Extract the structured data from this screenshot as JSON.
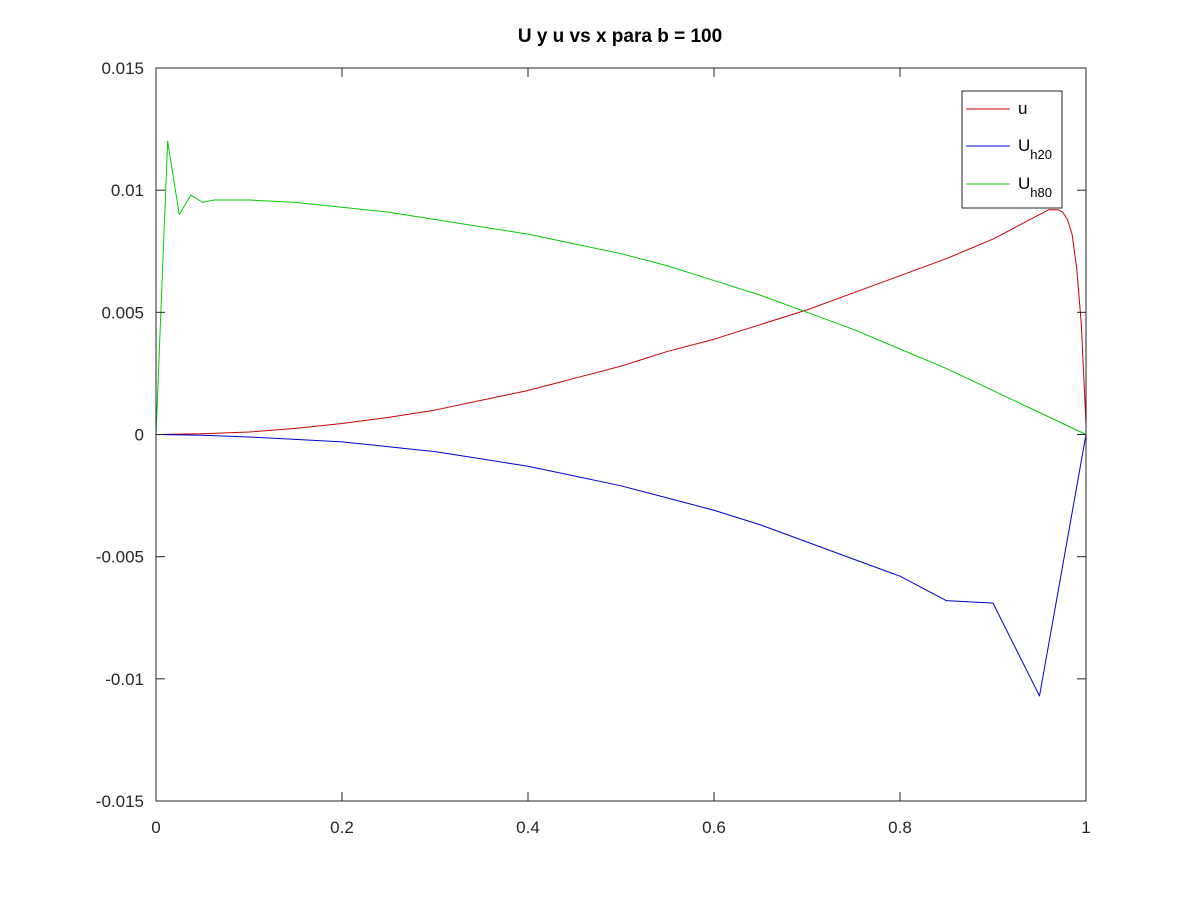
{
  "chart_data": {
    "type": "line",
    "title": "U y u vs x para b = 100",
    "xlabel": "",
    "ylabel": "",
    "xlim": [
      0,
      1
    ],
    "ylim": [
      -0.015,
      0.015
    ],
    "x_ticks": [
      0,
      0.2,
      0.4,
      0.6,
      0.8,
      1
    ],
    "x_tick_labels": [
      "0",
      "0.2",
      "0.4",
      "0.6",
      "0.8",
      "1"
    ],
    "y_ticks": [
      -0.015,
      -0.01,
      -0.005,
      0,
      0.005,
      0.01,
      0.015
    ],
    "y_tick_labels": [
      "-0.015",
      "-0.01",
      "-0.005",
      "0",
      "0.005",
      "0.01",
      "0.015"
    ],
    "grid": false,
    "legend_position": "top-right",
    "series": [
      {
        "name": "u",
        "label_main": "u",
        "label_sub": "",
        "color": "#cc0000",
        "x": [
          0,
          0.05,
          0.1,
          0.15,
          0.2,
          0.25,
          0.3,
          0.35,
          0.4,
          0.45,
          0.5,
          0.55,
          0.6,
          0.65,
          0.7,
          0.75,
          0.8,
          0.85,
          0.9,
          0.92,
          0.94,
          0.95,
          0.96,
          0.97,
          0.975,
          0.98,
          0.985,
          0.99,
          0.995,
          1
        ],
        "y": [
          0,
          3e-05,
          0.0001,
          0.00025,
          0.00045,
          0.0007,
          0.001,
          0.0014,
          0.0018,
          0.0023,
          0.0028,
          0.0034,
          0.0039,
          0.0045,
          0.0051,
          0.0058,
          0.0065,
          0.0072,
          0.008,
          0.0084,
          0.0088,
          0.009,
          0.0092,
          0.0092,
          0.0091,
          0.0088,
          0.0082,
          0.0068,
          0.0045,
          0.0004
        ]
      },
      {
        "name": "U_h20",
        "label_main": "U",
        "label_sub": "h20",
        "color": "#0000cc",
        "x": [
          0,
          0.05,
          0.1,
          0.15,
          0.2,
          0.25,
          0.3,
          0.35,
          0.4,
          0.45,
          0.5,
          0.55,
          0.6,
          0.65,
          0.7,
          0.75,
          0.8,
          0.85,
          0.9,
          0.95,
          1
        ],
        "y": [
          0,
          -3e-05,
          -0.0001,
          -0.0002,
          -0.0003,
          -0.0005,
          -0.0007,
          -0.001,
          -0.0013,
          -0.0017,
          -0.0021,
          -0.0026,
          -0.0031,
          -0.0037,
          -0.0044,
          -0.0051,
          -0.0058,
          -0.0068,
          -0.0069,
          -0.0107,
          0
        ]
      },
      {
        "name": "U_h80",
        "label_main": "U",
        "label_sub": "h80",
        "color": "#00cc00",
        "x": [
          0,
          0.0125,
          0.025,
          0.0375,
          0.05,
          0.0625,
          0.1,
          0.15,
          0.2,
          0.25,
          0.3,
          0.35,
          0.4,
          0.45,
          0.5,
          0.55,
          0.6,
          0.65,
          0.7,
          0.75,
          0.8,
          0.85,
          0.9,
          0.95,
          1
        ],
        "y": [
          0,
          0.012,
          0.009,
          0.0098,
          0.0095,
          0.0096,
          0.0096,
          0.0095,
          0.0093,
          0.0091,
          0.0088,
          0.0085,
          0.0082,
          0.0078,
          0.0074,
          0.0069,
          0.0063,
          0.0057,
          0.005,
          0.0043,
          0.0035,
          0.0027,
          0.0018,
          0.0009,
          0
        ]
      }
    ]
  }
}
